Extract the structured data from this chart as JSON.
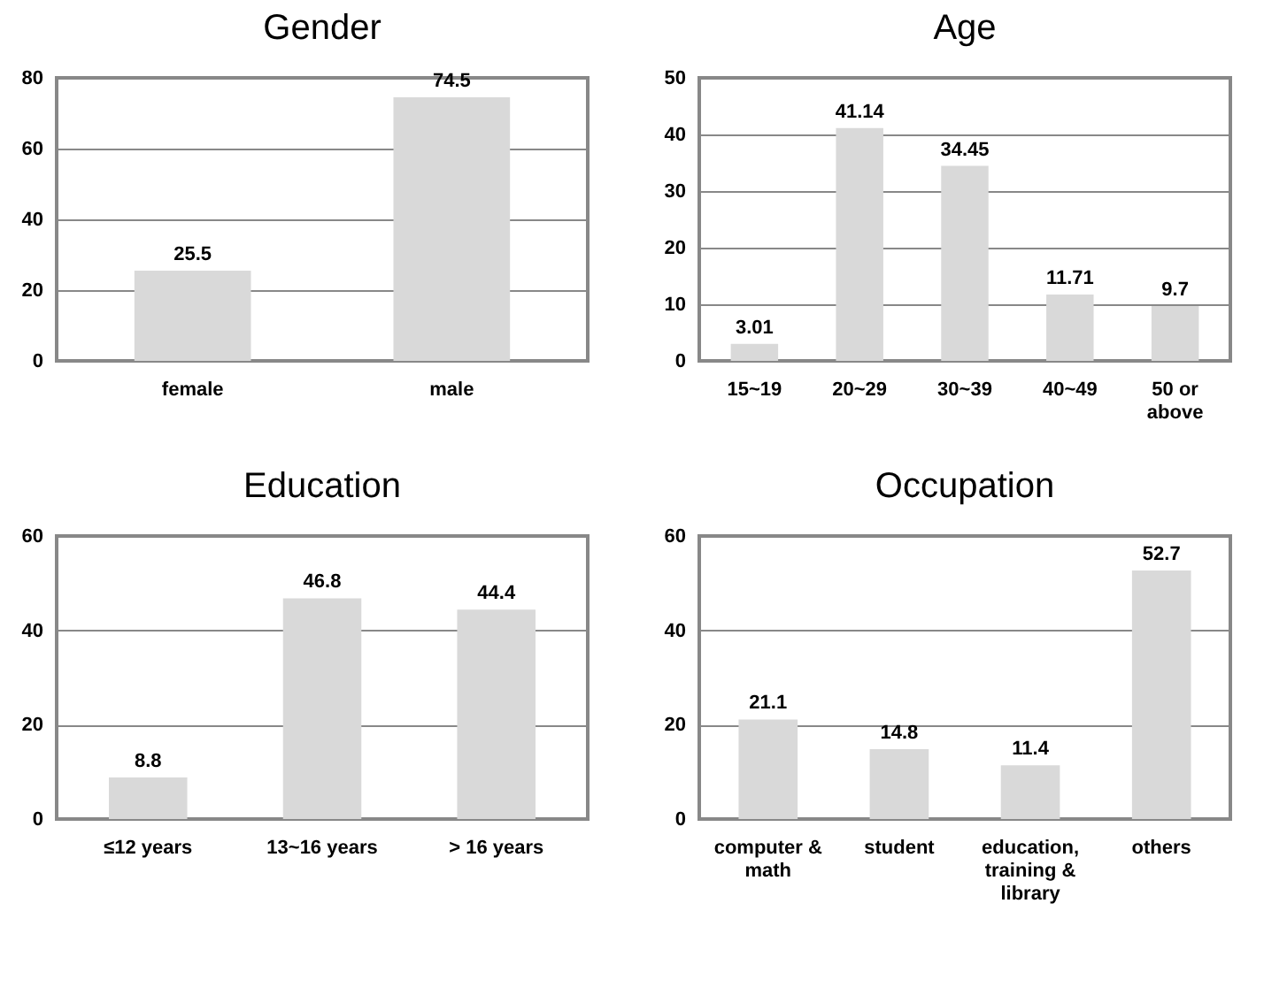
{
  "chart_data": [
    {
      "type": "bar",
      "title": "Gender",
      "categories": [
        "female",
        "male"
      ],
      "values": [
        25.5,
        74.5
      ],
      "color": "#d9d9d9",
      "ylim": [
        0,
        80
      ],
      "yticks": [
        0,
        20,
        40,
        60,
        80
      ],
      "grid": "y",
      "data_labels": true
    },
    {
      "type": "bar",
      "title": "Age",
      "categories": [
        "15~19",
        "20~29",
        "30~39",
        "40~49",
        "50 or above"
      ],
      "values": [
        3.01,
        41.14,
        34.45,
        11.71,
        9.7
      ],
      "color": "#d9d9d9",
      "ylim": [
        0,
        50
      ],
      "yticks": [
        0,
        10,
        20,
        30,
        40,
        50
      ],
      "grid": "y",
      "data_labels": true
    },
    {
      "type": "bar",
      "title": "Education",
      "categories": [
        "≤12 years",
        "13~16 years",
        "> 16 years"
      ],
      "values": [
        8.8,
        46.8,
        44.4
      ],
      "color": "#d9d9d9",
      "ylim": [
        0,
        60
      ],
      "yticks": [
        0,
        20,
        40,
        60
      ],
      "grid": "y",
      "data_labels": true
    },
    {
      "type": "bar",
      "title": "Occupation",
      "categories": [
        "computer & math",
        "student",
        "education, training & library",
        "others"
      ],
      "values": [
        21.1,
        14.8,
        11.4,
        52.7
      ],
      "color": "#d9d9d9",
      "ylim": [
        0,
        60
      ],
      "yticks": [
        0,
        20,
        40,
        60
      ],
      "grid": "y",
      "data_labels": true
    }
  ]
}
